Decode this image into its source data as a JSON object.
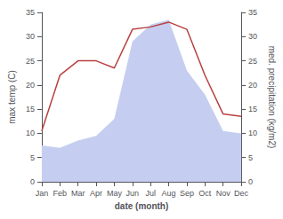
{
  "chart_data": {
    "type": "line",
    "xlabel": "date (month)",
    "ylabel": "max temp (C)",
    "y2label": "med. precipitation (kg/m2)",
    "categories": [
      "Jan",
      "Feb",
      "Mar",
      "Apr",
      "May",
      "Jun",
      "Jul",
      "Aug",
      "Sep",
      "Oct",
      "Nov",
      "Dec"
    ],
    "series": [
      {
        "type": "area",
        "color": "#c5cef0",
        "values": [
          7.5,
          7.0,
          8.5,
          9.5,
          13.0,
          29.0,
          32.5,
          33.5,
          23.0,
          18.0,
          10.5,
          10.0
        ]
      },
      {
        "type": "line",
        "color": "#b94040",
        "values": [
          10.5,
          22.0,
          25.0,
          25.0,
          23.5,
          31.5,
          32.0,
          33.0,
          31.5,
          22.0,
          14.0,
          13.5
        ]
      }
    ],
    "ylim": [
      0,
      35
    ],
    "yticks": [
      0,
      5,
      10,
      15,
      20,
      25,
      30,
      35
    ],
    "y2lim": [
      0,
      35
    ],
    "y2ticks": [
      0,
      5,
      10,
      15,
      20,
      25,
      30,
      35
    ],
    "grid": false
  }
}
